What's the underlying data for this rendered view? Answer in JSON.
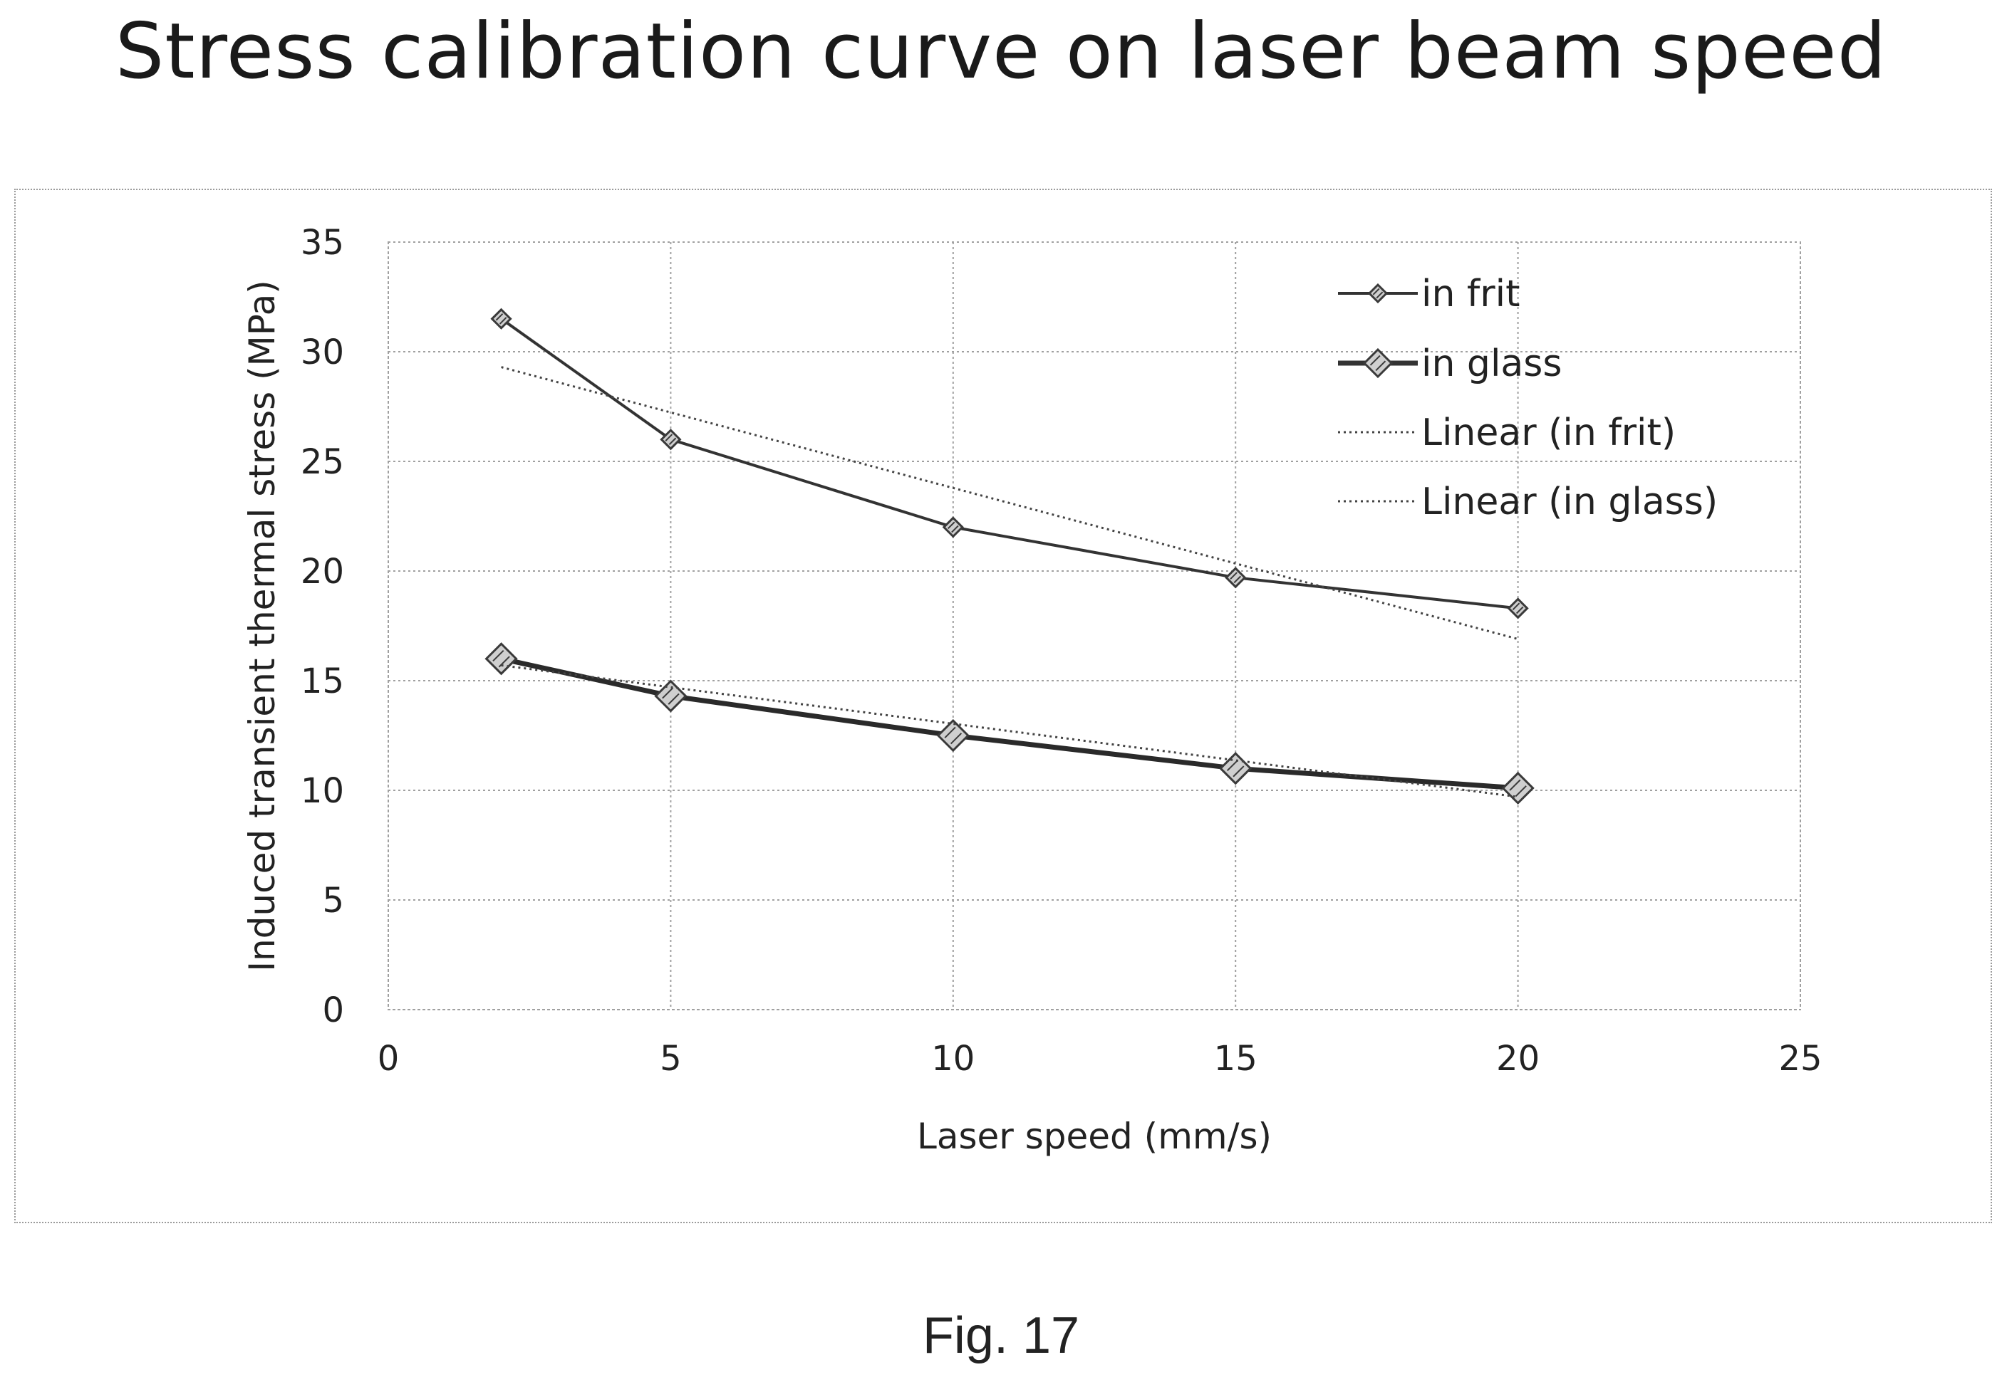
{
  "title": "Stress calibration curve on laser beam speed",
  "caption": "Fig. 17",
  "chart_data": {
    "type": "line",
    "xlabel": "Laser speed (mm/s)",
    "ylabel": "Induced transient thermal stress (MPa)",
    "xlim": [
      0,
      25
    ],
    "ylim": [
      0,
      35
    ],
    "xticks": [
      0,
      5,
      10,
      15,
      20,
      25
    ],
    "yticks": [
      0,
      5,
      10,
      15,
      20,
      25,
      30,
      35
    ],
    "grid": true,
    "legend_position": "top-right",
    "series": [
      {
        "name": "in frit",
        "kind": "data",
        "marker": "small-diamond",
        "x": [
          2,
          5,
          10,
          15,
          20
        ],
        "y": [
          31.5,
          26,
          22,
          19.7,
          18.3
        ]
      },
      {
        "name": "in glass",
        "kind": "data",
        "marker": "large-diamond",
        "x": [
          2,
          5,
          10,
          15,
          20
        ],
        "y": [
          16,
          14.3,
          12.5,
          11,
          10.1
        ]
      },
      {
        "name": "Linear (in frit)",
        "kind": "trendline",
        "x": [
          2,
          20
        ],
        "y": [
          29.3,
          16.9
        ]
      },
      {
        "name": "Linear (in glass)",
        "kind": "trendline",
        "x": [
          2,
          20
        ],
        "y": [
          15.7,
          9.7
        ]
      }
    ]
  }
}
